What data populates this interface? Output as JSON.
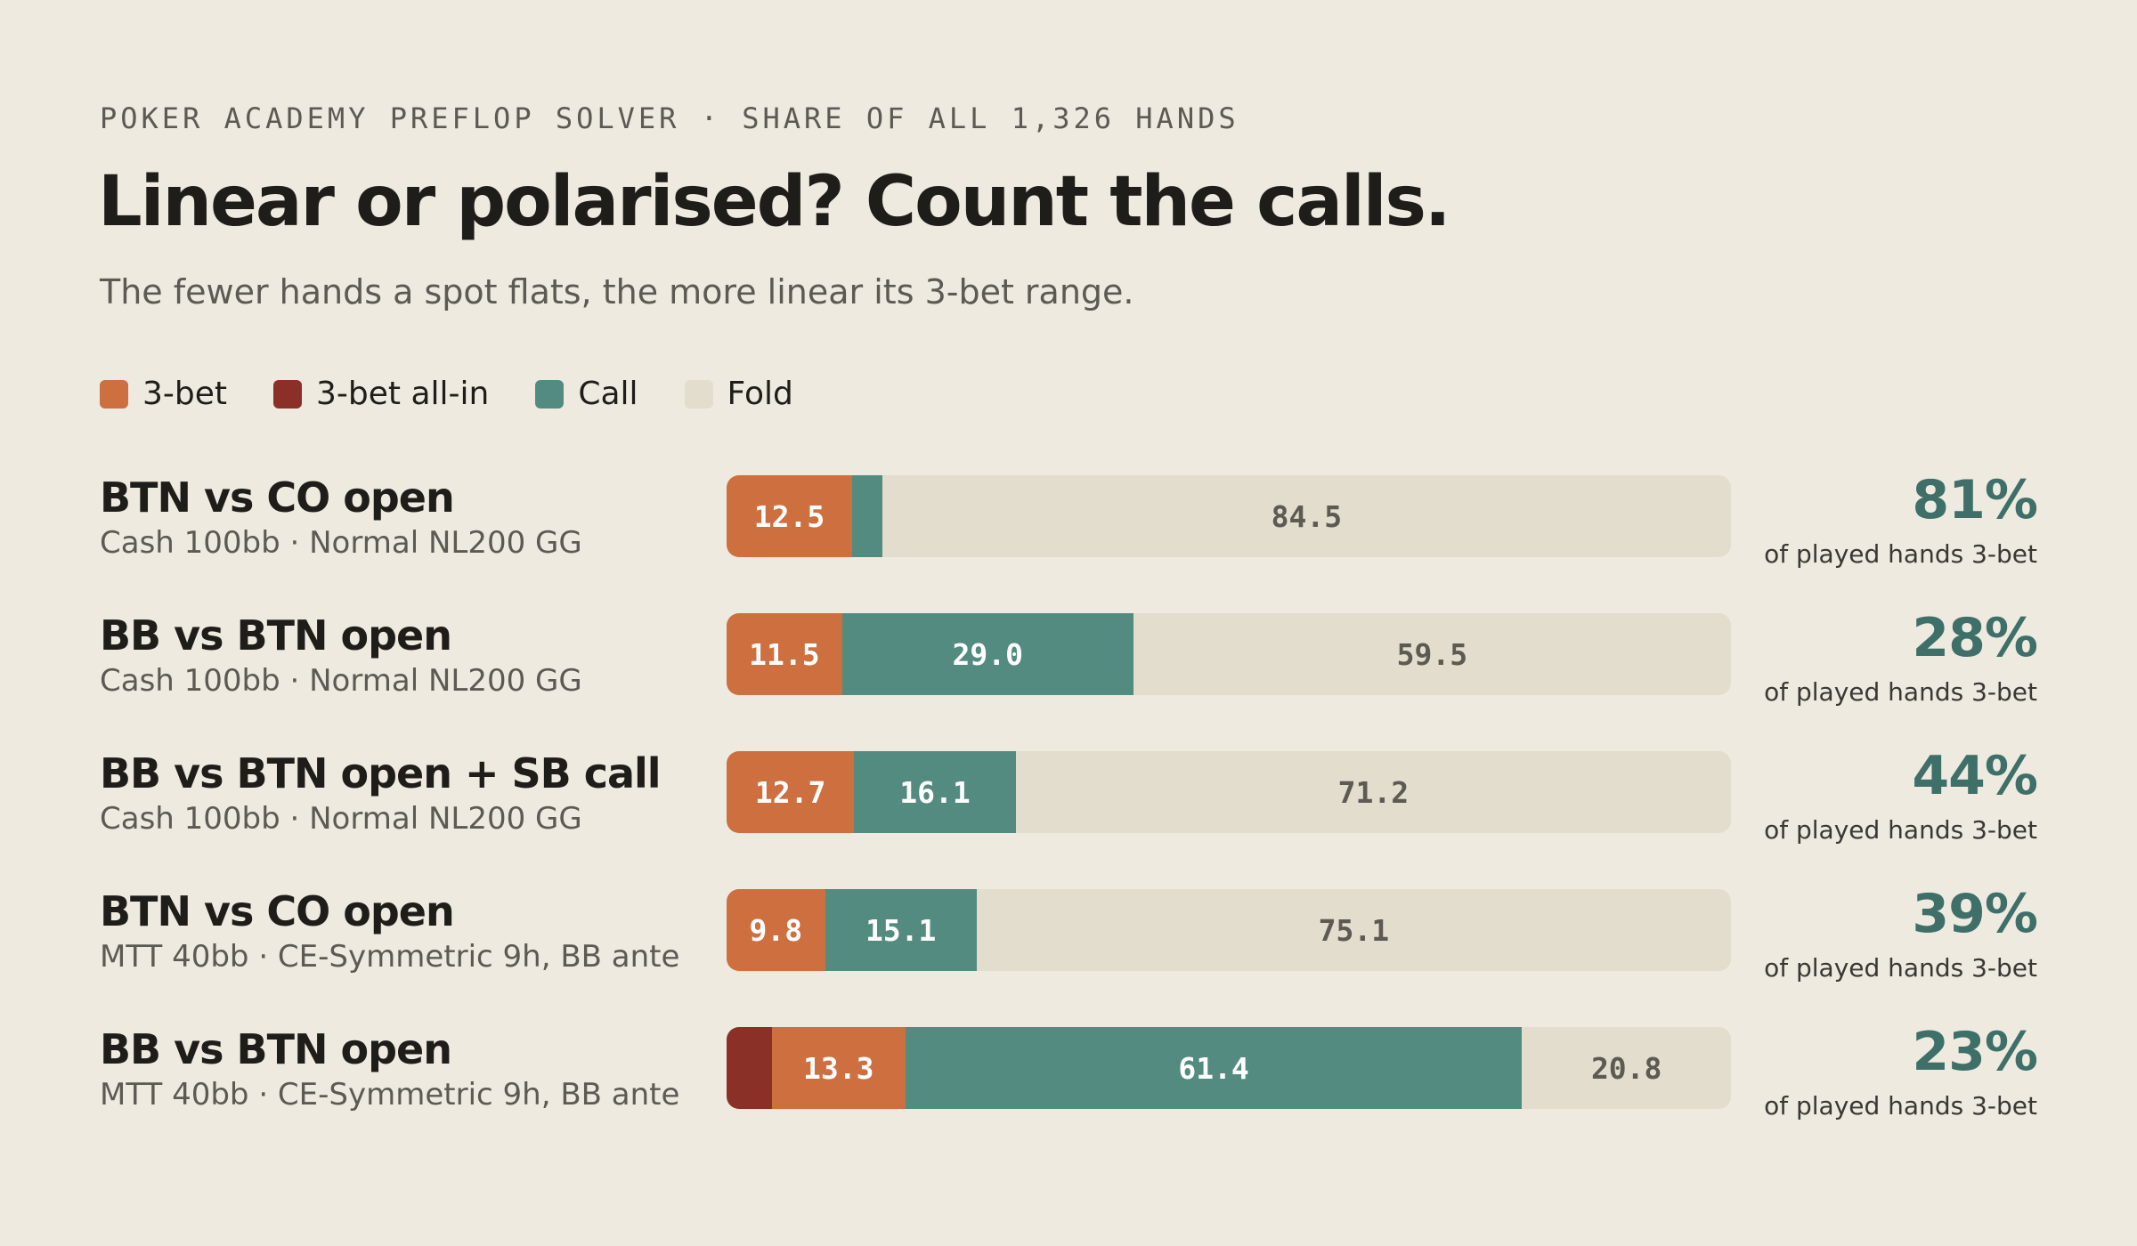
{
  "header": {
    "eyebrow": "POKER ACADEMY PREFLOP SOLVER · SHARE OF ALL 1,326 HANDS",
    "title": "Linear or polarised? Count the calls.",
    "subtitle": "The fewer hands a spot flats, the more linear its 3-bet range."
  },
  "legend": [
    {
      "label": "3-bet",
      "color": "#cd6f3f"
    },
    {
      "label": "3-bet all-in",
      "color": "#8a3026"
    },
    {
      "label": "Call",
      "color": "#548b81"
    },
    {
      "label": "Fold",
      "color": "#e2ddcd"
    }
  ],
  "metric_caption": "of played hands 3-bet",
  "chart_data": {
    "type": "bar",
    "orientation": "horizontal",
    "stacked": true,
    "unit": "% of all 1,326 hands",
    "series_order": [
      "3-bet all-in",
      "3-bet",
      "Call",
      "Fold"
    ],
    "rows": [
      {
        "title": "BTN vs CO open",
        "subtitle": "Cash 100bb · Normal NL200 GG",
        "values": {
          "3-bet all-in": 0,
          "3-bet": 12.5,
          "Call": 3.0,
          "Fold": 84.5
        },
        "labels": {
          "3-bet": "12.5",
          "Fold": "84.5"
        },
        "metric": "81%"
      },
      {
        "title": "BB vs BTN open",
        "subtitle": "Cash 100bb · Normal NL200 GG",
        "values": {
          "3-bet all-in": 0,
          "3-bet": 11.5,
          "Call": 29.0,
          "Fold": 59.5
        },
        "labels": {
          "3-bet": "11.5",
          "Call": "29.0",
          "Fold": "59.5"
        },
        "metric": "28%"
      },
      {
        "title": "BB vs BTN open + SB call",
        "subtitle": "Cash 100bb · Normal NL200 GG",
        "values": {
          "3-bet all-in": 0,
          "3-bet": 12.7,
          "Call": 16.1,
          "Fold": 71.2
        },
        "labels": {
          "3-bet": "12.7",
          "Call": "16.1",
          "Fold": "71.2"
        },
        "metric": "44%"
      },
      {
        "title": "BTN vs CO open",
        "subtitle": "MTT 40bb · CE-Symmetric 9h, BB ante",
        "values": {
          "3-bet all-in": 0,
          "3-bet": 9.8,
          "Call": 15.1,
          "Fold": 75.1
        },
        "labels": {
          "3-bet": "9.8",
          "Call": "15.1",
          "Fold": "75.1"
        },
        "metric": "39%"
      },
      {
        "title": "BB vs BTN open",
        "subtitle": "MTT 40bb · CE-Symmetric 9h, BB ante",
        "values": {
          "3-bet all-in": 4.5,
          "3-bet": 13.3,
          "Call": 61.4,
          "Fold": 20.8
        },
        "labels": {
          "3-bet": "13.3",
          "Call": "61.4",
          "Fold": "20.8"
        },
        "metric": "23%"
      }
    ]
  }
}
